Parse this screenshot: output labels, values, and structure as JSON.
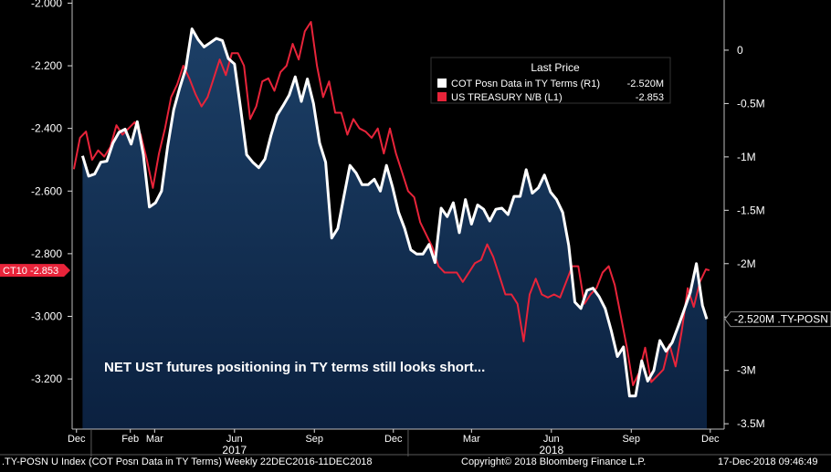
{
  "chart_data": {
    "type": "line",
    "left_axis": {
      "ticks": [
        -2.0,
        -2.2,
        -2.4,
        -2.6,
        -2.8,
        -3.0,
        -3.2
      ],
      "tick_labels": [
        "-2.000",
        "-2.200",
        "-2.400",
        "-2.600",
        "-2.800",
        "-3.000",
        "-3.200"
      ],
      "ylim": [
        -3.36,
        -1.99
      ]
    },
    "right_axis": {
      "ticks": [
        0,
        -0.5,
        -1,
        -1.5,
        -2,
        -2.5,
        -3,
        -3.5
      ],
      "tick_labels": [
        "0",
        "-0.5M",
        "-1M",
        "-1.5M",
        "-2M",
        "-2.5M",
        "-3M",
        "-3.5M"
      ],
      "ylim": [
        -3.55,
        0.47
      ]
    },
    "x_month_labels": [
      "Dec",
      "Feb",
      "Mar",
      "Jun",
      "Sep",
      "Dec",
      "Mar",
      "Jun",
      "Sep",
      "Dec"
    ],
    "x_month_dates": [
      "2016-12-15",
      "2017-02-15",
      "2017-03-15",
      "2017-06-15",
      "2017-09-15",
      "2017-12-15",
      "2018-03-15",
      "2018-06-15",
      "2018-09-15",
      "2018-12-15"
    ],
    "x_year_labels": [
      "2017",
      "2018"
    ],
    "x_year_dates": [
      "2017-06-15",
      "2018-06-15"
    ],
    "x_range": [
      "2016-12-10",
      "2018-12-31"
    ],
    "legend": {
      "title": "Last Price",
      "entries": [
        {
          "label": "COT Posn Data in TY Terms  (R1)",
          "value": "-2.520M",
          "color": "#ffffff"
        },
        {
          "label": "US TREASURY N/B  (L1)",
          "value": "-2.853",
          "color": "#e8243a"
        }
      ]
    },
    "series": [
      {
        "name": "COT Posn Data in TY Terms",
        "axis": "right",
        "style": "area",
        "color": "#ffffff",
        "values": [
          [
            "2016-12-22",
            -0.99
          ],
          [
            "2016-12-29",
            -1.18
          ],
          [
            "2017-01-05",
            -1.16
          ],
          [
            "2017-01-12",
            -1.05
          ],
          [
            "2017-01-19",
            -1.04
          ],
          [
            "2017-01-26",
            -0.87
          ],
          [
            "2017-02-02",
            -0.77
          ],
          [
            "2017-02-09",
            -0.74
          ],
          [
            "2017-02-16",
            -0.88
          ],
          [
            "2017-02-23",
            -0.67
          ],
          [
            "2017-03-02",
            -0.98
          ],
          [
            "2017-03-09",
            -1.47
          ],
          [
            "2017-03-16",
            -1.43
          ],
          [
            "2017-03-23",
            -1.32
          ],
          [
            "2017-03-30",
            -0.9
          ],
          [
            "2017-04-06",
            -0.56
          ],
          [
            "2017-04-13",
            -0.35
          ],
          [
            "2017-04-20",
            -0.17
          ],
          [
            "2017-04-27",
            0.2
          ],
          [
            "2017-05-04",
            0.1
          ],
          [
            "2017-05-11",
            0.03
          ],
          [
            "2017-05-18",
            0.07
          ],
          [
            "2017-05-25",
            0.11
          ],
          [
            "2017-06-01",
            0.09
          ],
          [
            "2017-06-08",
            -0.08
          ],
          [
            "2017-06-15",
            -0.13
          ],
          [
            "2017-06-22",
            -0.54
          ],
          [
            "2017-06-29",
            -0.98
          ],
          [
            "2017-07-06",
            -1.05
          ],
          [
            "2017-07-13",
            -1.1
          ],
          [
            "2017-07-20",
            -1.02
          ],
          [
            "2017-07-27",
            -0.8
          ],
          [
            "2017-08-03",
            -0.61
          ],
          [
            "2017-08-10",
            -0.52
          ],
          [
            "2017-08-17",
            -0.42
          ],
          [
            "2017-08-24",
            -0.25
          ],
          [
            "2017-08-31",
            -0.48
          ],
          [
            "2017-09-07",
            -0.27
          ],
          [
            "2017-09-14",
            -0.5
          ],
          [
            "2017-09-21",
            -0.87
          ],
          [
            "2017-09-28",
            -1.05
          ],
          [
            "2017-10-05",
            -1.76
          ],
          [
            "2017-10-12",
            -1.67
          ],
          [
            "2017-10-19",
            -1.37
          ],
          [
            "2017-10-26",
            -1.08
          ],
          [
            "2017-11-02",
            -1.15
          ],
          [
            "2017-11-09",
            -1.26
          ],
          [
            "2017-11-16",
            -1.26
          ],
          [
            "2017-11-23",
            -1.21
          ],
          [
            "2017-11-30",
            -1.32
          ],
          [
            "2017-12-07",
            -1.08
          ],
          [
            "2017-12-14",
            -1.28
          ],
          [
            "2017-12-21",
            -1.52
          ],
          [
            "2017-12-28",
            -1.67
          ],
          [
            "2018-01-04",
            -1.87
          ],
          [
            "2018-01-11",
            -1.91
          ],
          [
            "2018-01-18",
            -1.91
          ],
          [
            "2018-01-25",
            -1.82
          ],
          [
            "2018-02-01",
            -1.99
          ],
          [
            "2018-02-08",
            -1.48
          ],
          [
            "2018-02-15",
            -1.56
          ],
          [
            "2018-02-22",
            -1.43
          ],
          [
            "2018-03-01",
            -1.71
          ],
          [
            "2018-03-08",
            -1.4
          ],
          [
            "2018-03-15",
            -1.63
          ],
          [
            "2018-03-22",
            -1.45
          ],
          [
            "2018-03-29",
            -1.49
          ],
          [
            "2018-04-05",
            -1.6
          ],
          [
            "2018-04-12",
            -1.49
          ],
          [
            "2018-04-19",
            -1.48
          ],
          [
            "2018-04-26",
            -1.54
          ],
          [
            "2018-05-03",
            -1.37
          ],
          [
            "2018-05-10",
            -1.37
          ],
          [
            "2018-05-17",
            -1.12
          ],
          [
            "2018-05-24",
            -1.34
          ],
          [
            "2018-05-31",
            -1.29
          ],
          [
            "2018-06-07",
            -1.17
          ],
          [
            "2018-06-14",
            -1.33
          ],
          [
            "2018-06-21",
            -1.4
          ],
          [
            "2018-06-28",
            -1.52
          ],
          [
            "2018-07-05",
            -1.83
          ],
          [
            "2018-07-12",
            -2.36
          ],
          [
            "2018-07-19",
            -2.42
          ],
          [
            "2018-07-26",
            -2.25
          ],
          [
            "2018-08-02",
            -2.23
          ],
          [
            "2018-08-09",
            -2.31
          ],
          [
            "2018-08-16",
            -2.42
          ],
          [
            "2018-08-23",
            -2.63
          ],
          [
            "2018-08-30",
            -2.87
          ],
          [
            "2018-09-06",
            -2.78
          ],
          [
            "2018-09-13",
            -3.24
          ],
          [
            "2018-09-20",
            -3.24
          ],
          [
            "2018-09-27",
            -2.91
          ],
          [
            "2018-10-04",
            -3.1
          ],
          [
            "2018-10-11",
            -3.0
          ],
          [
            "2018-10-18",
            -2.72
          ],
          [
            "2018-10-25",
            -2.82
          ],
          [
            "2018-11-01",
            -2.74
          ],
          [
            "2018-11-08",
            -2.59
          ],
          [
            "2018-11-15",
            -2.43
          ],
          [
            "2018-11-22",
            -2.27
          ],
          [
            "2018-11-29",
            -2.0
          ],
          [
            "2018-12-06",
            -2.39
          ],
          [
            "2018-12-11",
            -2.52
          ]
        ]
      },
      {
        "name": "US TREASURY N/B",
        "axis": "left",
        "style": "line",
        "color": "#e8243a",
        "values": [
          [
            "2016-12-12",
            -2.53
          ],
          [
            "2016-12-19",
            -2.43
          ],
          [
            "2016-12-26",
            -2.41
          ],
          [
            "2017-01-02",
            -2.5
          ],
          [
            "2017-01-09",
            -2.47
          ],
          [
            "2017-01-16",
            -2.49
          ],
          [
            "2017-01-23",
            -2.46
          ],
          [
            "2017-01-30",
            -2.39
          ],
          [
            "2017-02-06",
            -2.42
          ],
          [
            "2017-02-13",
            -2.4
          ],
          [
            "2017-02-20",
            -2.38
          ],
          [
            "2017-02-27",
            -2.42
          ],
          [
            "2017-03-06",
            -2.5
          ],
          [
            "2017-03-13",
            -2.59
          ],
          [
            "2017-03-20",
            -2.48
          ],
          [
            "2017-03-27",
            -2.4
          ],
          [
            "2017-04-03",
            -2.3
          ],
          [
            "2017-04-10",
            -2.26
          ],
          [
            "2017-04-17",
            -2.2
          ],
          [
            "2017-04-24",
            -2.24
          ],
          [
            "2017-05-01",
            -2.29
          ],
          [
            "2017-05-08",
            -2.33
          ],
          [
            "2017-05-15",
            -2.3
          ],
          [
            "2017-05-22",
            -2.24
          ],
          [
            "2017-05-29",
            -2.18
          ],
          [
            "2017-06-05",
            -2.23
          ],
          [
            "2017-06-12",
            -2.16
          ],
          [
            "2017-06-19",
            -2.16
          ],
          [
            "2017-06-26",
            -2.2
          ],
          [
            "2017-07-03",
            -2.37
          ],
          [
            "2017-07-10",
            -2.33
          ],
          [
            "2017-07-17",
            -2.25
          ],
          [
            "2017-07-24",
            -2.24
          ],
          [
            "2017-07-31",
            -2.28
          ],
          [
            "2017-08-07",
            -2.22
          ],
          [
            "2017-08-14",
            -2.2
          ],
          [
            "2017-08-21",
            -2.13
          ],
          [
            "2017-08-28",
            -2.18
          ],
          [
            "2017-09-04",
            -2.09
          ],
          [
            "2017-09-11",
            -2.06
          ],
          [
            "2017-09-18",
            -2.2
          ],
          [
            "2017-09-25",
            -2.3
          ],
          [
            "2017-10-02",
            -2.25
          ],
          [
            "2017-10-09",
            -2.35
          ],
          [
            "2017-10-16",
            -2.35
          ],
          [
            "2017-10-23",
            -2.42
          ],
          [
            "2017-10-30",
            -2.37
          ],
          [
            "2017-11-06",
            -2.4
          ],
          [
            "2017-11-13",
            -2.41
          ],
          [
            "2017-11-20",
            -2.43
          ],
          [
            "2017-11-27",
            -2.4
          ],
          [
            "2017-12-04",
            -2.48
          ],
          [
            "2017-12-11",
            -2.4
          ],
          [
            "2017-12-18",
            -2.48
          ],
          [
            "2017-12-25",
            -2.54
          ],
          [
            "2018-01-01",
            -2.6
          ],
          [
            "2018-01-08",
            -2.62
          ],
          [
            "2018-01-15",
            -2.7
          ],
          [
            "2018-01-22",
            -2.74
          ],
          [
            "2018-01-29",
            -2.78
          ],
          [
            "2018-02-05",
            -2.84
          ],
          [
            "2018-02-12",
            -2.86
          ],
          [
            "2018-02-19",
            -2.86
          ],
          [
            "2018-02-26",
            -2.86
          ],
          [
            "2018-03-05",
            -2.89
          ],
          [
            "2018-03-12",
            -2.86
          ],
          [
            "2018-03-19",
            -2.83
          ],
          [
            "2018-03-26",
            -2.82
          ],
          [
            "2018-04-02",
            -2.77
          ],
          [
            "2018-04-09",
            -2.81
          ],
          [
            "2018-04-16",
            -2.87
          ],
          [
            "2018-04-23",
            -2.93
          ],
          [
            "2018-04-30",
            -2.93
          ],
          [
            "2018-05-07",
            -2.96
          ],
          [
            "2018-05-14",
            -3.08
          ],
          [
            "2018-05-21",
            -2.93
          ],
          [
            "2018-05-28",
            -2.88
          ],
          [
            "2018-06-04",
            -2.93
          ],
          [
            "2018-06-11",
            -2.94
          ],
          [
            "2018-06-18",
            -2.93
          ],
          [
            "2018-06-25",
            -2.94
          ],
          [
            "2018-07-02",
            -2.89
          ],
          [
            "2018-07-09",
            -2.84
          ],
          [
            "2018-07-16",
            -2.84
          ],
          [
            "2018-07-23",
            -2.96
          ],
          [
            "2018-07-30",
            -2.93
          ],
          [
            "2018-08-06",
            -2.91
          ],
          [
            "2018-08-13",
            -2.86
          ],
          [
            "2018-08-20",
            -2.84
          ],
          [
            "2018-08-27",
            -2.9
          ],
          [
            "2018-09-03",
            -3.0
          ],
          [
            "2018-09-10",
            -3.1
          ],
          [
            "2018-09-17",
            -3.22
          ],
          [
            "2018-09-24",
            -3.18
          ],
          [
            "2018-10-01",
            -3.1
          ],
          [
            "2018-10-08",
            -3.21
          ],
          [
            "2018-10-15",
            -3.19
          ],
          [
            "2018-10-22",
            -3.17
          ],
          [
            "2018-10-29",
            -3.09
          ],
          [
            "2018-11-05",
            -3.16
          ],
          [
            "2018-11-12",
            -3.05
          ],
          [
            "2018-11-19",
            -2.91
          ],
          [
            "2018-11-26",
            -2.97
          ],
          [
            "2018-12-03",
            -2.89
          ],
          [
            "2018-12-10",
            -2.85
          ],
          [
            "2018-12-14",
            -2.853
          ]
        ]
      }
    ],
    "annotation": "NET UST futures positioning in TY terms still looks short...",
    "left_tag": {
      "text": "CT10 -2.853",
      "value": -2.853,
      "color": "#e8243a"
    },
    "right_tag": {
      "text": "-2.520M .TY-POSN",
      "value": -2.52
    },
    "grid": "none",
    "legend_position": "top-right"
  },
  "footer": {
    "left": ".TY-POSN U Index (COT Posn Data in TY Terms)  Weekly 22DEC2016-11DEC2018",
    "center": "Copyright© 2018 Bloomberg Finance L.P.",
    "right": "17-Dec-2018 09:46:49"
  },
  "colors": {
    "background": "#000000",
    "area_fill": "#0f2a4a",
    "area_line": "#ffffff",
    "red_line": "#e8243a",
    "separator": "#5a5a5a"
  }
}
